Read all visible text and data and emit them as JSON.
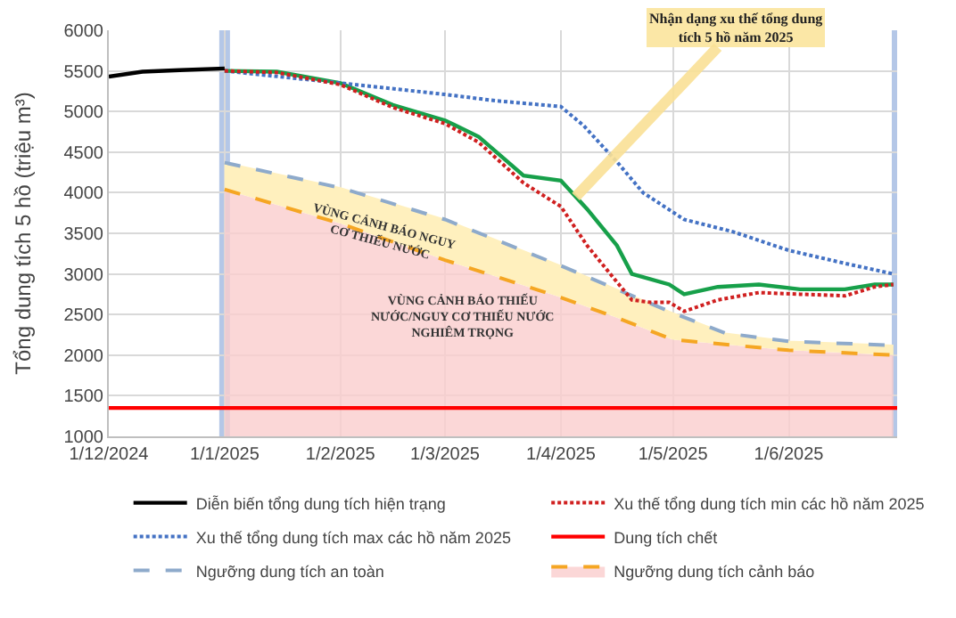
{
  "chart_data": {
    "type": "line",
    "ylabel": "Tổng dung tích 5 hồ (triệu m³)",
    "xlim": [
      "2024-12-01",
      "2025-06-30"
    ],
    "xticks": [
      {
        "value": "2024-12-01",
        "label": "1/12/2024"
      },
      {
        "value": "2025-01-01",
        "label": "1/1/2025"
      },
      {
        "value": "2025-02-01",
        "label": "1/2/2025"
      },
      {
        "value": "2025-03-01",
        "label": "1/3/2025"
      },
      {
        "value": "2025-04-01",
        "label": "1/4/2025"
      },
      {
        "value": "2025-05-01",
        "label": "1/5/2025"
      },
      {
        "value": "2025-06-01",
        "label": "1/6/2025"
      }
    ],
    "ylim": [
      1000,
      6000
    ],
    "yticks": [
      1000,
      1500,
      2000,
      2500,
      3000,
      3500,
      4000,
      4500,
      5000,
      5500,
      6000
    ],
    "grid": true,
    "legend": "bottom",
    "marker": "none",
    "series": [
      {
        "name": "Diễn biến tổng dung tích hiện trạng",
        "color": "#000000",
        "line_style": "solid",
        "x": [
          "2024-12-01",
          "2024-12-10",
          "2024-12-20",
          "2025-01-01"
        ],
        "values": [
          5430,
          5490,
          5510,
          5530
        ]
      },
      {
        "name": "Xu thế tổng dung tích min các hồ năm 2025",
        "color": "#d02020",
        "line_style": "dotted",
        "x": [
          "2025-01-01",
          "2025-01-15",
          "2025-02-01",
          "2025-02-15",
          "2025-03-01",
          "2025-03-10",
          "2025-03-22",
          "2025-04-01",
          "2025-04-08",
          "2025-04-16",
          "2025-04-20",
          "2025-04-25",
          "2025-04-30",
          "2025-05-04",
          "2025-05-13",
          "2025-05-24",
          "2025-06-04",
          "2025-06-16",
          "2025-06-24",
          "2025-06-29"
        ],
        "values": [
          5500,
          5480,
          5330,
          5050,
          4850,
          4620,
          4120,
          3830,
          3350,
          2900,
          2680,
          2650,
          2650,
          2540,
          2680,
          2770,
          2750,
          2730,
          2840,
          2870
        ]
      },
      {
        "name": "Xu thế tổng dung tích max các hồ năm 2025",
        "color": "#4472c4",
        "line_style": "dotted",
        "x": [
          "2025-01-01",
          "2025-02-01",
          "2025-03-01",
          "2025-03-15",
          "2025-04-01",
          "2025-04-07",
          "2025-04-16",
          "2025-04-23",
          "2025-05-04",
          "2025-05-17",
          "2025-06-01",
          "2025-06-16",
          "2025-06-29"
        ],
        "values": [
          5500,
          5350,
          5210,
          5130,
          5060,
          4830,
          4380,
          4000,
          3670,
          3520,
          3290,
          3130,
          3000
        ]
      },
      {
        "name": "Dung tích chết",
        "color": "#ff0000",
        "line_style": "solid",
        "x": [
          "2024-12-01",
          "2025-06-30"
        ],
        "values": [
          1350,
          1350
        ]
      },
      {
        "name": "Ngưỡng dung tích an toàn",
        "color": "#8eaacb",
        "line_style": "dashed",
        "x": [
          "2025-01-01",
          "2025-02-01",
          "2025-03-01",
          "2025-04-01",
          "2025-05-01",
          "2025-05-15",
          "2025-06-01",
          "2025-06-29"
        ],
        "values": [
          4370,
          4060,
          3670,
          3100,
          2520,
          2270,
          2170,
          2120
        ]
      },
      {
        "name": "Ngưỡng dung tích cảnh báo",
        "type": "area",
        "color": "#f5a623",
        "line_style": "dashed",
        "x": [
          "2025-01-01",
          "2025-02-01",
          "2025-03-01",
          "2025-04-01",
          "2025-04-16",
          "2025-05-01",
          "2025-06-01",
          "2025-06-29"
        ],
        "values": [
          4040,
          3620,
          3170,
          2710,
          2460,
          2190,
          2060,
          2000
        ]
      },
      {
        "type": "area",
        "color": "#fff0be",
        "line_style": "none",
        "x": [
          "2025-01-01",
          "2025-02-01",
          "2025-03-01",
          "2025-04-01",
          "2025-05-01",
          "2025-05-15",
          "2025-06-01",
          "2025-06-29"
        ],
        "values": [
          4370,
          4060,
          3670,
          3100,
          2520,
          2270,
          2170,
          2120
        ]
      },
      {
        "color": "#17a04a",
        "line_style": "solid",
        "x": [
          "2025-01-01",
          "2025-01-15",
          "2025-02-01",
          "2025-02-15",
          "2025-03-01",
          "2025-03-10",
          "2025-03-22",
          "2025-04-01",
          "2025-04-08",
          "2025-04-16",
          "2025-04-20",
          "2025-04-30",
          "2025-05-04",
          "2025-05-13",
          "2025-05-24",
          "2025-06-04",
          "2025-06-16",
          "2025-06-24",
          "2025-06-29"
        ],
        "values": [
          5500,
          5490,
          5350,
          5080,
          4890,
          4690,
          4210,
          4150,
          3800,
          3350,
          3000,
          2870,
          2750,
          2840,
          2870,
          2810,
          2810,
          2870,
          2870
        ]
      }
    ],
    "ref_lines": [
      {
        "axis": "x",
        "value": "2025-01-01",
        "color": "#b4c7e7"
      },
      {
        "axis": "x",
        "value": "2025-06-30",
        "color": "#b4c7e7"
      }
    ],
    "annotations": [
      {
        "text": "Nhận dạng xu thế tổng dung tích 5 hồ năm 2025",
        "x": "2025-04-05",
        "y": 3950
      },
      {
        "text": "VÙNG CẢNH BÁO NGUY\nCƠ THIẾU NƯỚC",
        "x": "2025-02-12",
        "y": 3480
      },
      "VÙNG CẢNH BÁO THIẾU\nNƯỚC/NGUY CƠ THIẾU NƯỚC\nNGHIÊM TRỌNG"
    ]
  }
}
